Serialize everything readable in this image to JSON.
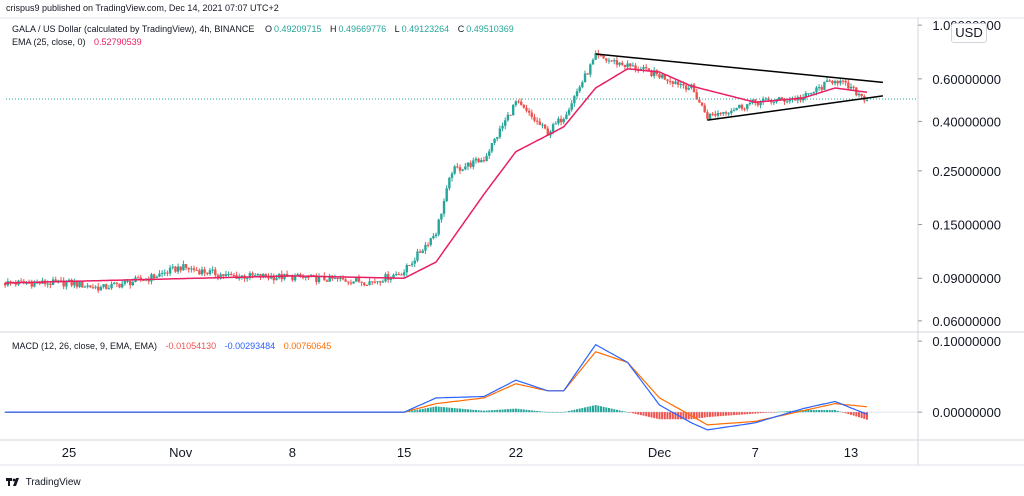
{
  "header": {
    "text": "crispus9 published on TradingView.com, Dec 14, 2021 07:07 UTC+2"
  },
  "legend": {
    "ohlc": {
      "symbol": "GALA / US Dollar (calculated by TradingView), 4h, BINANCE",
      "o_label": "O",
      "o": "0.49209715",
      "h_label": "H",
      "h": "0.49669776",
      "l_label": "L",
      "l": "0.49123264",
      "c_label": "C",
      "c": "0.49510369"
    },
    "ema": {
      "label": "EMA (25, close, 0)",
      "value": "0.52790539"
    },
    "macd": {
      "label": "MACD (12, 26, close, 9, EMA, EMA)",
      "hist": "-0.01054130",
      "macd": "-0.00293484",
      "signal": "0.00760645"
    }
  },
  "currency": "USD",
  "footer": {
    "brand": "TradingView"
  },
  "colors": {
    "up": "#26a69a",
    "down": "#ef5350",
    "ema": "#e91e63",
    "macd_line": "#2962ff",
    "signal_line": "#ff6d00",
    "hist_up": "#26a69a",
    "hist_down": "#ef5350",
    "price_line": "#26a69a",
    "trendline": "#000000"
  },
  "chart_data": [
    {
      "type": "candlestick",
      "title": "GALA / US Dollar (calculated by TradingView), 4h, BINANCE",
      "y_scale": "log",
      "ylim": [
        0.055,
        1.05
      ],
      "x_tick_labels": [
        "25",
        "Nov",
        "8",
        "15",
        "22",
        "Dec",
        "7",
        "13"
      ],
      "x_ticks": [
        "2021-10-25",
        "2021-11-01",
        "2021-11-08",
        "2021-11-15",
        "2021-11-22",
        "2021-12-01",
        "2021-12-07",
        "2021-12-13"
      ],
      "y_tick_labels": [
        "1.00000000",
        "0.60000000",
        "0.40000000",
        "0.25000000",
        "0.15000000",
        "0.09000000",
        "0.06000000"
      ],
      "y_ticks": [
        1.0,
        0.6,
        0.4,
        0.25,
        0.15,
        0.09,
        0.06
      ],
      "close_path": [
        [
          "2021-10-21",
          0.086
        ],
        [
          "2021-10-25",
          0.086
        ],
        [
          "2021-10-27",
          0.082
        ],
        [
          "2021-10-30",
          0.09
        ],
        [
          "2021-11-01",
          0.1
        ],
        [
          "2021-11-04",
          0.092
        ],
        [
          "2021-11-08",
          0.091
        ],
        [
          "2021-11-13",
          0.087
        ],
        [
          "2021-11-15",
          0.096
        ],
        [
          "2021-11-17",
          0.14
        ],
        [
          "2021-11-18",
          0.25
        ],
        [
          "2021-11-20",
          0.28
        ],
        [
          "2021-11-22",
          0.48
        ],
        [
          "2021-11-24",
          0.36
        ],
        [
          "2021-11-25",
          0.42
        ],
        [
          "2021-11-27",
          0.74
        ],
        [
          "2021-11-29",
          0.68
        ],
        [
          "2021-12-01",
          0.62
        ],
        [
          "2021-12-03",
          0.55
        ],
        [
          "2021-12-04",
          0.42
        ],
        [
          "2021-12-07",
          0.48
        ],
        [
          "2021-12-10",
          0.5
        ],
        [
          "2021-12-12",
          0.6
        ],
        [
          "2021-12-14",
          0.495
        ]
      ],
      "ema_path": [
        [
          "2021-10-21",
          0.086
        ],
        [
          "2021-10-30",
          0.089
        ],
        [
          "2021-11-08",
          0.092
        ],
        [
          "2021-11-15",
          0.09
        ],
        [
          "2021-11-17",
          0.105
        ],
        [
          "2021-11-20",
          0.2
        ],
        [
          "2021-11-22",
          0.3
        ],
        [
          "2021-11-25",
          0.38
        ],
        [
          "2021-11-27",
          0.55
        ],
        [
          "2021-11-29",
          0.66
        ],
        [
          "2021-12-01",
          0.64
        ],
        [
          "2021-12-03",
          0.56
        ],
        [
          "2021-12-07",
          0.48
        ],
        [
          "2021-12-10",
          0.5
        ],
        [
          "2021-12-12",
          0.55
        ],
        [
          "2021-12-14",
          0.528
        ]
      ],
      "last_price": 0.4951,
      "trendline_upper": [
        [
          "2021-11-27",
          0.76
        ],
        [
          "2021-12-15",
          0.58
        ]
      ],
      "trendline_lower": [
        [
          "2021-12-04",
          0.405
        ],
        [
          "2021-12-15",
          0.51
        ]
      ]
    },
    {
      "type": "macd",
      "title": "MACD (12, 26, close, 9, EMA, EMA)",
      "ylim": [
        -0.035,
        0.11
      ],
      "y_tick_labels": [
        "0.10000000",
        "0.00000000"
      ],
      "y_ticks": [
        0.1,
        0.0
      ],
      "macd_path": [
        [
          "2021-10-21",
          0.0
        ],
        [
          "2021-11-15",
          0.0
        ],
        [
          "2021-11-17",
          0.02
        ],
        [
          "2021-11-20",
          0.022
        ],
        [
          "2021-11-22",
          0.045
        ],
        [
          "2021-11-24",
          0.03
        ],
        [
          "2021-11-25",
          0.03
        ],
        [
          "2021-11-27",
          0.095
        ],
        [
          "2021-11-29",
          0.07
        ],
        [
          "2021-12-01",
          0.01
        ],
        [
          "2021-12-03",
          -0.015
        ],
        [
          "2021-12-04",
          -0.025
        ],
        [
          "2021-12-07",
          -0.015
        ],
        [
          "2021-12-10",
          0.005
        ],
        [
          "2021-12-12",
          0.015
        ],
        [
          "2021-12-14",
          -0.003
        ]
      ],
      "signal_path": [
        [
          "2021-10-21",
          0.0
        ],
        [
          "2021-11-15",
          0.0
        ],
        [
          "2021-11-17",
          0.012
        ],
        [
          "2021-11-20",
          0.02
        ],
        [
          "2021-11-22",
          0.04
        ],
        [
          "2021-11-24",
          0.03
        ],
        [
          "2021-11-25",
          0.03
        ],
        [
          "2021-11-27",
          0.085
        ],
        [
          "2021-11-29",
          0.07
        ],
        [
          "2021-12-01",
          0.02
        ],
        [
          "2021-12-03",
          -0.005
        ],
        [
          "2021-12-04",
          -0.018
        ],
        [
          "2021-12-07",
          -0.013
        ],
        [
          "2021-12-10",
          0.002
        ],
        [
          "2021-12-12",
          0.012
        ],
        [
          "2021-12-14",
          0.0076
        ]
      ]
    }
  ]
}
